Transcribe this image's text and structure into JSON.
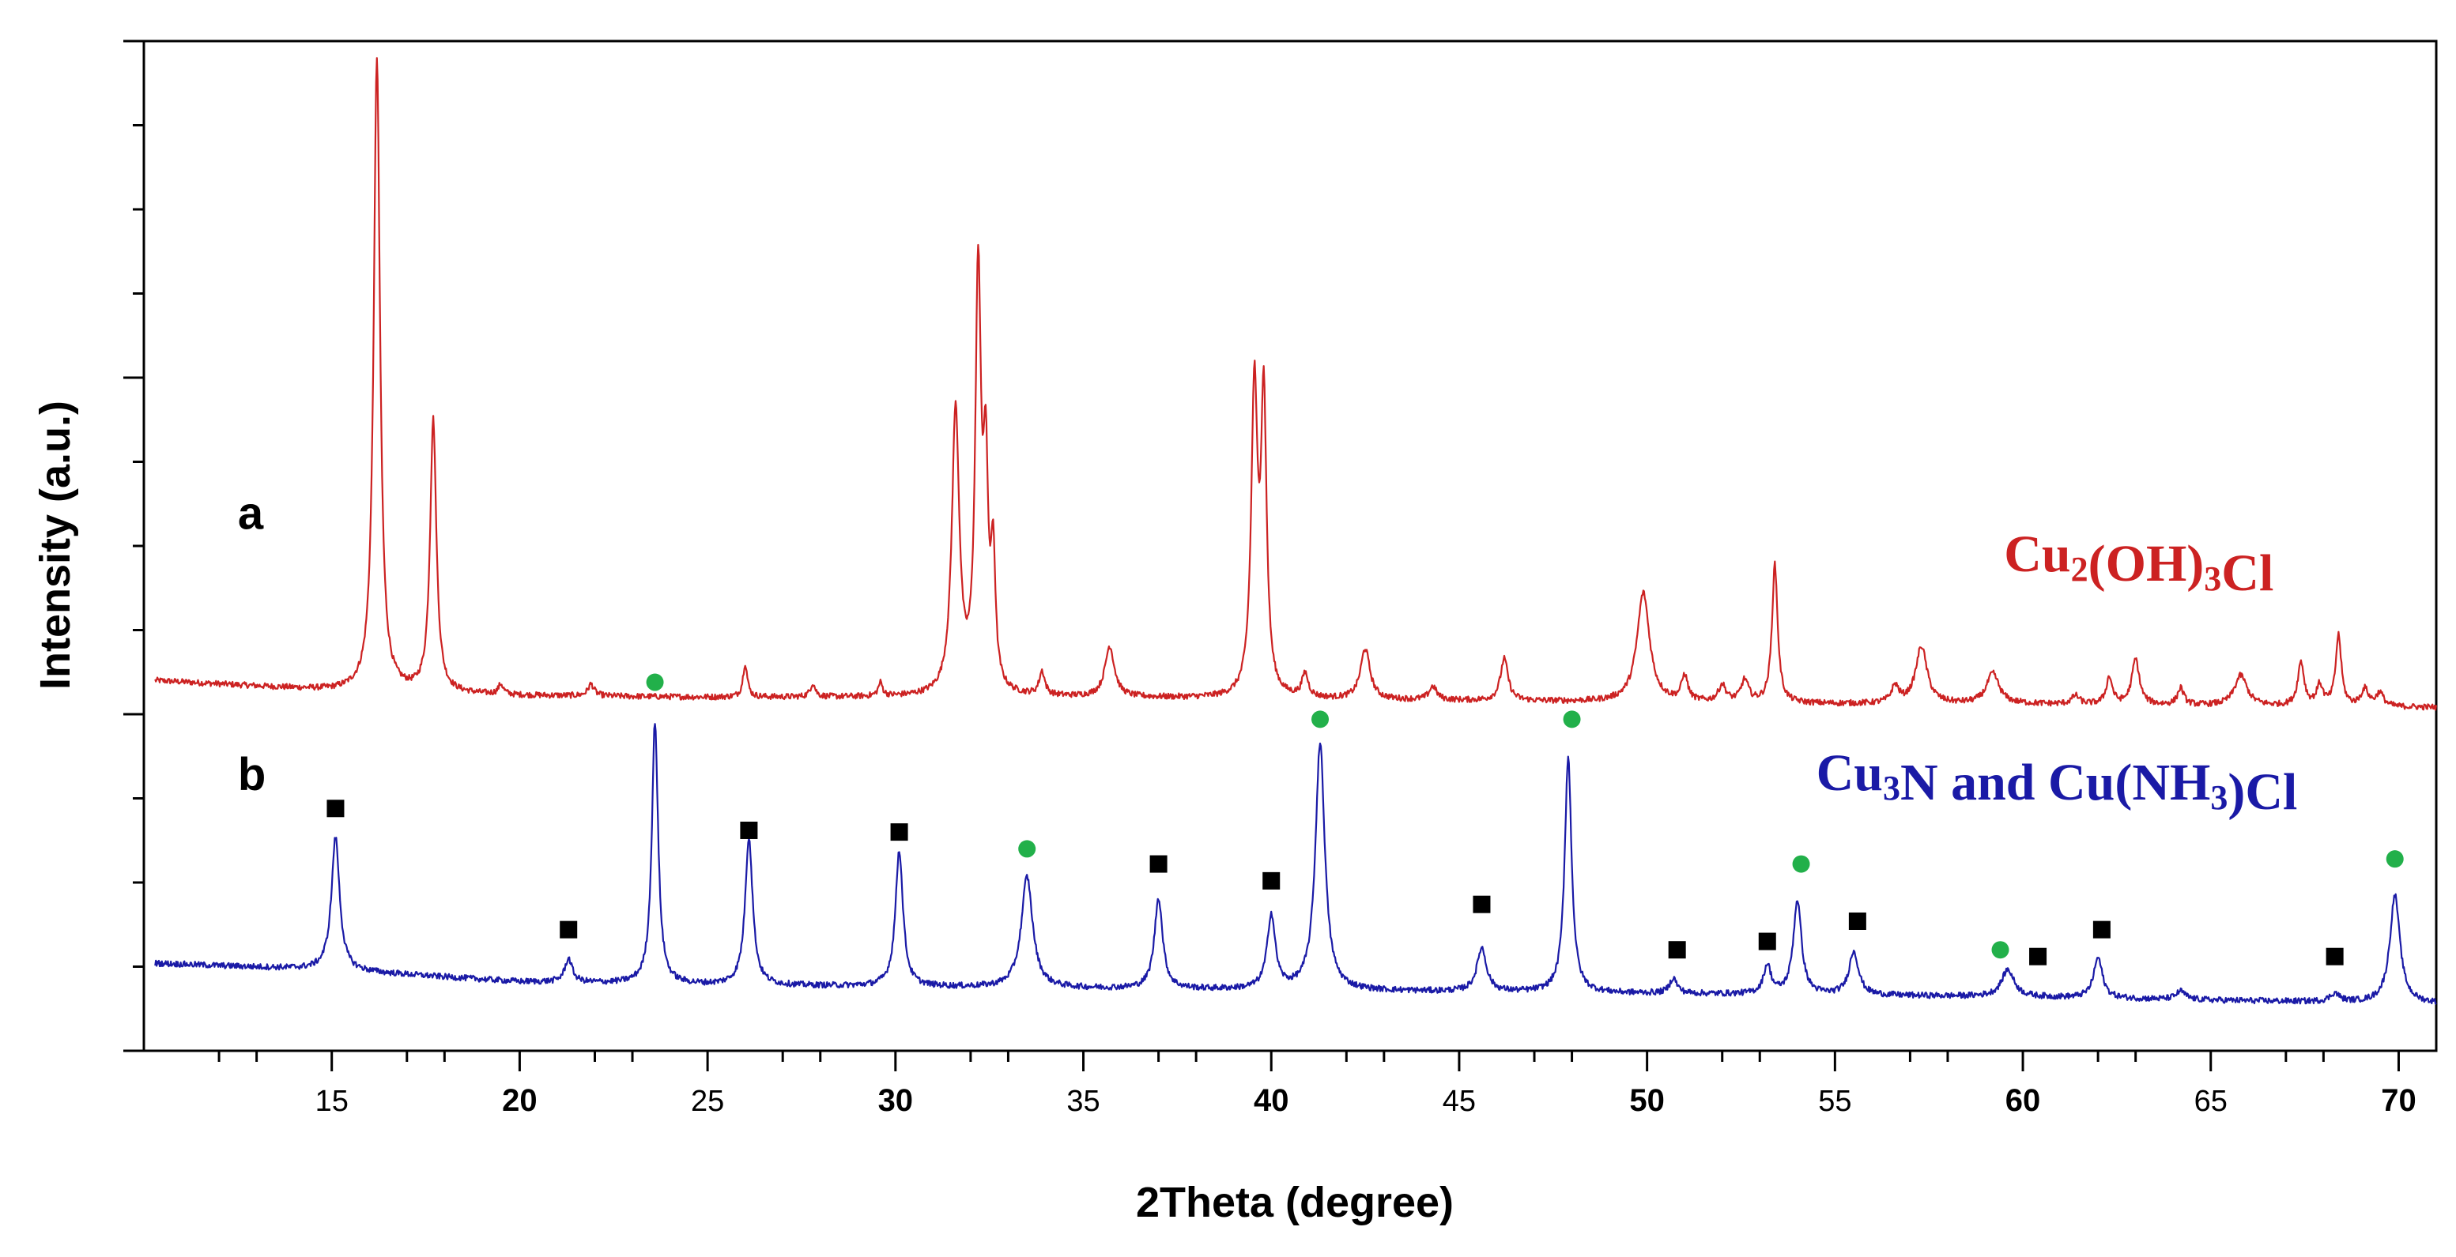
{
  "chart_data": {
    "type": "line",
    "xlabel": "2Theta (degree)",
    "ylabel": "Intensity (a.u.)",
    "xlim": [
      10,
      71
    ],
    "ylim": [
      0,
      6
    ],
    "grid": false,
    "x_ticks": [
      {
        "value": 15,
        "label": "15",
        "bold": false
      },
      {
        "value": 20,
        "label": "20",
        "bold": true
      },
      {
        "value": 25,
        "label": "25",
        "bold": false
      },
      {
        "value": 30,
        "label": "30",
        "bold": true
      },
      {
        "value": 35,
        "label": "35",
        "bold": false
      },
      {
        "value": 40,
        "label": "40",
        "bold": true
      },
      {
        "value": 45,
        "label": "45",
        "bold": false
      },
      {
        "value": 50,
        "label": "50",
        "bold": true
      },
      {
        "value": 55,
        "label": "55",
        "bold": false
      },
      {
        "value": 60,
        "label": "60",
        "bold": true
      },
      {
        "value": 65,
        "label": "65",
        "bold": false
      },
      {
        "value": 70,
        "label": "70",
        "bold": true
      }
    ],
    "panels": [
      {
        "letter": "a",
        "x": 12.5,
        "y": 3.1
      },
      {
        "letter": "b",
        "x": 12.5,
        "y": 1.55
      }
    ],
    "series": [
      {
        "name": "Cu2(OH)3Cl",
        "label_parts": [
          {
            "text": "Cu",
            "sub": false
          },
          {
            "text": "2",
            "sub": true
          },
          {
            "text": "(OH)",
            "sub": false
          },
          {
            "text": "3",
            "sub": true
          },
          {
            "text": "Cl",
            "sub": false
          }
        ],
        "label_pos": {
          "x": 59.5,
          "y": 2.85
        },
        "color": "#cc2222",
        "baseline": [
          [
            10.3,
            2.2
          ],
          [
            15.0,
            2.14
          ],
          [
            20.0,
            2.11
          ],
          [
            25.0,
            2.1
          ],
          [
            30.0,
            2.1
          ],
          [
            35.0,
            2.1
          ],
          [
            40.0,
            2.09
          ],
          [
            45.0,
            2.08
          ],
          [
            50.0,
            2.07
          ],
          [
            55.0,
            2.06
          ],
          [
            60.0,
            2.06
          ],
          [
            65.0,
            2.05
          ],
          [
            71.0,
            2.04
          ]
        ],
        "peaks": [
          {
            "x": 16.2,
            "h": 3.77,
            "w": 0.1
          },
          {
            "x": 17.7,
            "h": 1.62,
            "w": 0.1
          },
          {
            "x": 19.5,
            "h": 0.06,
            "w": 0.08
          },
          {
            "x": 21.9,
            "h": 0.07,
            "w": 0.1
          },
          {
            "x": 26.0,
            "h": 0.2,
            "w": 0.07
          },
          {
            "x": 27.8,
            "h": 0.08,
            "w": 0.08
          },
          {
            "x": 29.6,
            "h": 0.08,
            "w": 0.07
          },
          {
            "x": 31.6,
            "h": 1.68,
            "w": 0.12
          },
          {
            "x": 32.2,
            "h": 2.45,
            "w": 0.09
          },
          {
            "x": 32.4,
            "h": 1.2,
            "w": 0.08
          },
          {
            "x": 32.6,
            "h": 0.75,
            "w": 0.07
          },
          {
            "x": 33.9,
            "h": 0.14,
            "w": 0.09
          },
          {
            "x": 35.7,
            "h": 0.3,
            "w": 0.15
          },
          {
            "x": 39.55,
            "h": 1.8,
            "w": 0.1
          },
          {
            "x": 39.8,
            "h": 1.72,
            "w": 0.09
          },
          {
            "x": 40.9,
            "h": 0.14,
            "w": 0.1
          },
          {
            "x": 42.5,
            "h": 0.3,
            "w": 0.15
          },
          {
            "x": 44.3,
            "h": 0.08,
            "w": 0.12
          },
          {
            "x": 46.2,
            "h": 0.25,
            "w": 0.12
          },
          {
            "x": 49.9,
            "h": 0.65,
            "w": 0.2
          },
          {
            "x": 51.0,
            "h": 0.15,
            "w": 0.1
          },
          {
            "x": 52.0,
            "h": 0.1,
            "w": 0.12
          },
          {
            "x": 52.6,
            "h": 0.13,
            "w": 0.12
          },
          {
            "x": 53.4,
            "h": 0.82,
            "w": 0.09
          },
          {
            "x": 56.6,
            "h": 0.1,
            "w": 0.12
          },
          {
            "x": 57.3,
            "h": 0.34,
            "w": 0.18
          },
          {
            "x": 59.2,
            "h": 0.18,
            "w": 0.2
          },
          {
            "x": 61.4,
            "h": 0.05,
            "w": 0.12
          },
          {
            "x": 62.3,
            "h": 0.16,
            "w": 0.1
          },
          {
            "x": 63.0,
            "h": 0.27,
            "w": 0.12
          },
          {
            "x": 64.2,
            "h": 0.1,
            "w": 0.1
          },
          {
            "x": 65.8,
            "h": 0.18,
            "w": 0.2
          },
          {
            "x": 67.4,
            "h": 0.26,
            "w": 0.1
          },
          {
            "x": 67.9,
            "h": 0.12,
            "w": 0.1
          },
          {
            "x": 68.4,
            "h": 0.42,
            "w": 0.09
          },
          {
            "x": 69.1,
            "h": 0.1,
            "w": 0.12
          },
          {
            "x": 69.5,
            "h": 0.08,
            "w": 0.12
          }
        ]
      },
      {
        "name": "Cu3N and Cu(NH3)Cl",
        "label_parts": [
          {
            "text": "Cu",
            "sub": false
          },
          {
            "text": "3",
            "sub": true
          },
          {
            "text": "N and Cu(NH",
            "sub": false
          },
          {
            "text": "3",
            "sub": true
          },
          {
            "text": ")Cl",
            "sub": false
          }
        ],
        "label_pos": {
          "x": 54.5,
          "y": 1.55
        },
        "color": "#1a1aa6",
        "baseline": [
          [
            10.3,
            0.52
          ],
          [
            15.0,
            0.48
          ],
          [
            20.0,
            0.41
          ],
          [
            25.0,
            0.39
          ],
          [
            30.0,
            0.38
          ],
          [
            35.0,
            0.37
          ],
          [
            40.0,
            0.36
          ],
          [
            45.0,
            0.35
          ],
          [
            50.0,
            0.34
          ],
          [
            55.0,
            0.33
          ],
          [
            60.0,
            0.32
          ],
          [
            65.0,
            0.3
          ],
          [
            71.0,
            0.28
          ]
        ],
        "peaks": [
          {
            "x": 15.1,
            "h": 0.79,
            "w": 0.13
          },
          {
            "x": 21.3,
            "h": 0.14,
            "w": 0.12
          },
          {
            "x": 23.6,
            "h": 1.56,
            "w": 0.1
          },
          {
            "x": 26.1,
            "h": 0.88,
            "w": 0.12
          },
          {
            "x": 30.1,
            "h": 0.81,
            "w": 0.12
          },
          {
            "x": 33.5,
            "h": 0.66,
            "w": 0.18
          },
          {
            "x": 37.0,
            "h": 0.54,
            "w": 0.13
          },
          {
            "x": 40.0,
            "h": 0.44,
            "w": 0.13
          },
          {
            "x": 41.3,
            "h": 1.47,
            "w": 0.15
          },
          {
            "x": 45.6,
            "h": 0.26,
            "w": 0.15
          },
          {
            "x": 47.9,
            "h": 1.4,
            "w": 0.11
          },
          {
            "x": 50.7,
            "h": 0.09,
            "w": 0.12
          },
          {
            "x": 53.2,
            "h": 0.17,
            "w": 0.12
          },
          {
            "x": 54.0,
            "h": 0.56,
            "w": 0.13
          },
          {
            "x": 55.5,
            "h": 0.26,
            "w": 0.15
          },
          {
            "x": 59.6,
            "h": 0.16,
            "w": 0.2
          },
          {
            "x": 62.0,
            "h": 0.24,
            "w": 0.14
          },
          {
            "x": 64.2,
            "h": 0.05,
            "w": 0.15
          },
          {
            "x": 68.3,
            "h": 0.05,
            "w": 0.15
          },
          {
            "x": 69.9,
            "h": 0.64,
            "w": 0.16
          }
        ]
      }
    ],
    "marker_series": [
      {
        "shape": "square",
        "color": "#000000",
        "points": [
          {
            "x": 15.1,
            "y": 1.44
          },
          {
            "x": 21.3,
            "y": 0.72
          },
          {
            "x": 26.1,
            "y": 1.31
          },
          {
            "x": 30.1,
            "y": 1.3
          },
          {
            "x": 37.0,
            "y": 1.11
          },
          {
            "x": 40.0,
            "y": 1.01
          },
          {
            "x": 45.6,
            "y": 0.87
          },
          {
            "x": 50.8,
            "y": 0.6
          },
          {
            "x": 53.2,
            "y": 0.65
          },
          {
            "x": 55.6,
            "y": 0.77
          },
          {
            "x": 60.4,
            "y": 0.56
          },
          {
            "x": 62.1,
            "y": 0.72
          },
          {
            "x": 68.3,
            "y": 0.56
          }
        ]
      },
      {
        "shape": "circle",
        "color": "#22b04a",
        "points": [
          {
            "x": 23.6,
            "y": 2.19
          },
          {
            "x": 33.5,
            "y": 1.2
          },
          {
            "x": 41.3,
            "y": 1.97
          },
          {
            "x": 48.0,
            "y": 1.97
          },
          {
            "x": 54.1,
            "y": 1.11
          },
          {
            "x": 59.4,
            "y": 0.6
          },
          {
            "x": 69.9,
            "y": 1.14
          }
        ]
      }
    ]
  }
}
